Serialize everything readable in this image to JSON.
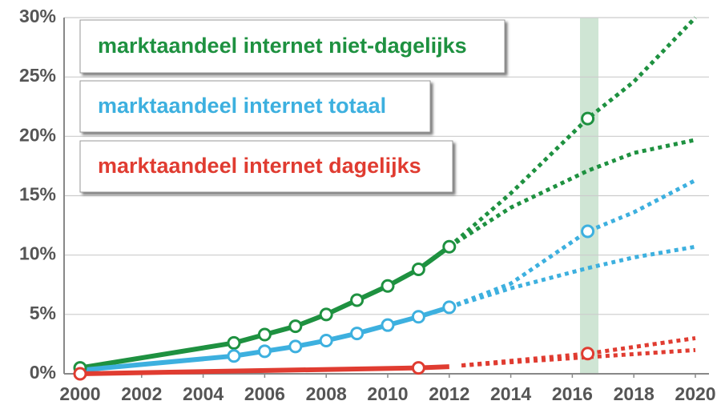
{
  "chart_data": {
    "type": "line",
    "xlim": [
      2000,
      2020
    ],
    "xticks": [
      2000,
      2002,
      2004,
      2006,
      2008,
      2010,
      2012,
      2014,
      2016,
      2018,
      2020
    ],
    "ylim": [
      0,
      30
    ],
    "yticks": [
      {
        "value": 0,
        "label": "0%"
      },
      {
        "value": 5,
        "label": "5%"
      },
      {
        "value": 10,
        "label": "10%"
      },
      {
        "value": 15,
        "label": "15%"
      },
      {
        "value": 20,
        "label": "20%"
      },
      {
        "value": 25,
        "label": "25%"
      },
      {
        "value": 30,
        "label": "30%"
      }
    ],
    "grid": true,
    "highlight_x": [
      2016.25,
      2016.85
    ],
    "highlight_color": "#cfe5d4",
    "series": [
      {
        "name": "marktaandeel internet niet-dagelijks",
        "color": "#1e9140",
        "x": [
          2000,
          2005,
          2006,
          2007,
          2008,
          2009,
          2010,
          2011,
          2012
        ],
        "values": [
          0.5,
          2.6,
          3.3,
          4.0,
          5.0,
          6.2,
          7.4,
          8.8,
          10.7
        ],
        "markers": [
          true,
          true,
          true,
          true,
          true,
          true,
          true,
          true,
          true
        ],
        "projections": [
          {
            "x": [
              2012,
              2014,
              2016.5,
              2018,
              2020
            ],
            "values": [
              10.7,
              15.2,
              21.5,
              24.6,
              30.0
            ],
            "markers": [
              false,
              false,
              true,
              false,
              false
            ]
          },
          {
            "x": [
              2012,
              2014,
              2016.5,
              2018,
              2020
            ],
            "values": [
              10.7,
              14.0,
              17.1,
              18.6,
              19.7
            ],
            "markers": [
              false,
              false,
              false,
              false,
              false
            ]
          }
        ]
      },
      {
        "name": "marktaandeel internet totaal",
        "color": "#3db0df",
        "x": [
          2000,
          2005,
          2006,
          2007,
          2008,
          2009,
          2010,
          2011,
          2012
        ],
        "values": [
          0.3,
          1.5,
          1.9,
          2.3,
          2.8,
          3.4,
          4.1,
          4.8,
          5.6
        ],
        "markers": [
          false,
          true,
          true,
          true,
          true,
          true,
          true,
          true,
          true
        ],
        "projections": [
          {
            "x": [
              2012,
              2014,
              2016.5,
              2018,
              2020
            ],
            "values": [
              5.6,
              7.6,
              12.0,
              13.6,
              16.3
            ],
            "markers": [
              false,
              false,
              true,
              false,
              false
            ]
          },
          {
            "x": [
              2012,
              2014,
              2016.5,
              2018,
              2020
            ],
            "values": [
              5.6,
              7.2,
              8.9,
              9.8,
              10.7
            ],
            "markers": [
              false,
              false,
              false,
              false,
              false
            ]
          }
        ]
      },
      {
        "name": "marktaandeel internet dagelijks",
        "color": "#e03c31",
        "x": [
          2000,
          2011,
          2012
        ],
        "values": [
          0.0,
          0.5,
          0.6
        ],
        "markers": [
          true,
          true,
          false
        ],
        "projections": [
          {
            "x": [
              2012.4,
              2016.5,
              2020
            ],
            "values": [
              0.7,
              1.7,
              3.0
            ],
            "markers": [
              false,
              true,
              false
            ]
          },
          {
            "x": [
              2012.4,
              2016.5,
              2020
            ],
            "values": [
              0.7,
              1.4,
              2.0
            ],
            "markers": [
              false,
              false,
              false
            ]
          }
        ]
      }
    ]
  }
}
